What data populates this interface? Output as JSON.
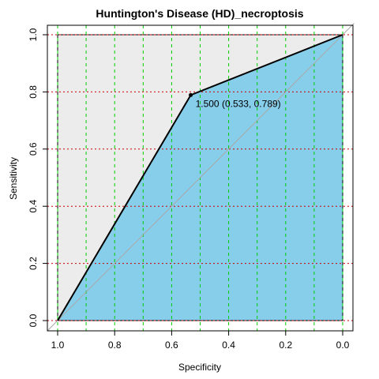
{
  "chart_data": {
    "type": "line",
    "title": "Huntington's Disease (HD)_necroptosis",
    "xlabel": "Specificity",
    "ylabel": "Sensitivity",
    "xlim": [
      1.0,
      0.0
    ],
    "ylim": [
      0.0,
      1.0
    ],
    "x_reversed": true,
    "x_ticks": [
      "1.0",
      "0.8",
      "0.6",
      "0.4",
      "0.2",
      "0.0"
    ],
    "y_ticks": [
      "0.0",
      "0.2",
      "0.4",
      "0.6",
      "0.8",
      "1.0"
    ],
    "grid": true,
    "series": [
      {
        "points": [
          {
            "x": 1.0,
            "y": 0.0
          },
          {
            "x": 0.533,
            "y": 0.789
          },
          {
            "x": 0.0,
            "y": 1.0
          }
        ]
      }
    ],
    "threshold_point": {
      "x": 0.533,
      "y": 0.789,
      "label": "1.500 (0.533, 0.789)"
    },
    "colors": {
      "auc_fill": "#87ceeb",
      "above_fill": "#ececec",
      "curve": "#000000",
      "diagonal": "#a9a9a9",
      "grid_x": "#00cc00",
      "grid_y": "#cc0000"
    }
  }
}
